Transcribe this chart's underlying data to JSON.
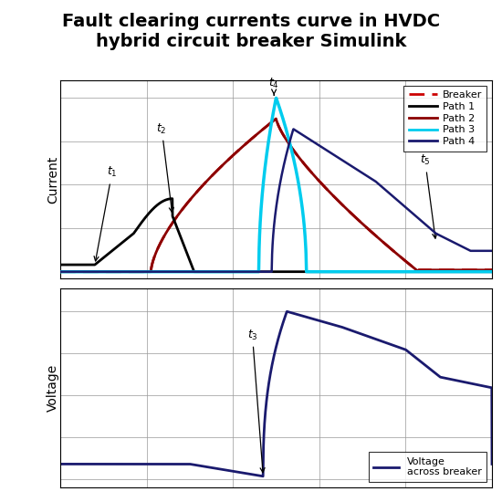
{
  "title": "Fault clearing currents curve in HVDC\nhybrid circuit breaker Simulink",
  "title_fontsize": 14,
  "current_ylabel": "Current",
  "voltage_ylabel": "Voltage",
  "background_color": "#ffffff",
  "grid_color": "#999999",
  "breaker_color": "#cc0000",
  "path1_color": "#000000",
  "path2_color": "#8b0000",
  "path3_color": "#00ccee",
  "path4_color": "#1a1a6e",
  "voltage_color": "#1a1a6e"
}
